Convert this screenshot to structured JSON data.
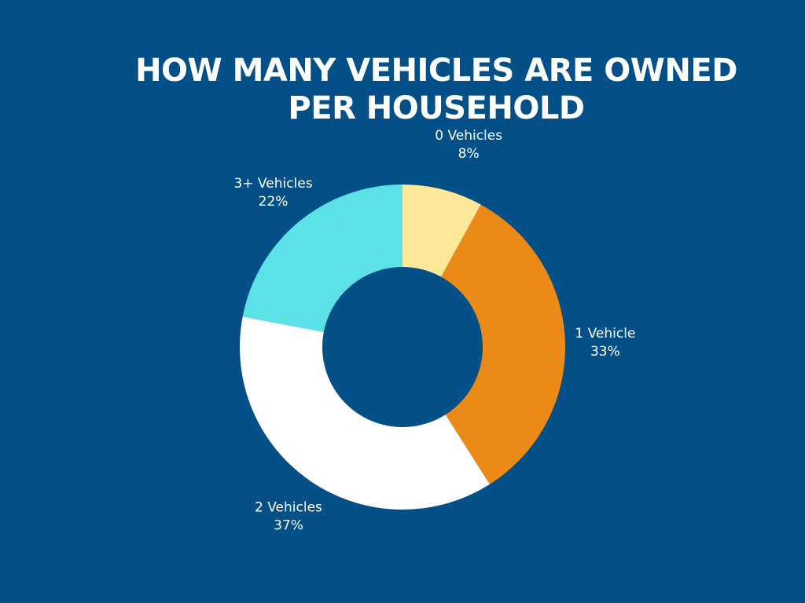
{
  "chart_data": {
    "type": "pie",
    "variant": "donut",
    "title_lines": [
      "HOW MANY VEHICLES ARE OWNED",
      "PER HOUSEHOLD"
    ],
    "slices": [
      {
        "label": "0 Vehicles",
        "value": 8,
        "value_label": "8%",
        "color": "#FFE79A"
      },
      {
        "label": "1 Vehicle",
        "value": 33,
        "value_label": "33%",
        "color": "#EB8A17"
      },
      {
        "label": "2 Vehicles",
        "value": 37,
        "value_label": "37%",
        "color": "#FFFFFF"
      },
      {
        "label": "3+ Vehicles",
        "value": 22,
        "value_label": "22%",
        "color": "#5CE1E6"
      }
    ],
    "start": "top",
    "direction": "clockwise",
    "legend": "none"
  },
  "colors": {
    "background": "#025087",
    "text": "#FFFFFF"
  }
}
